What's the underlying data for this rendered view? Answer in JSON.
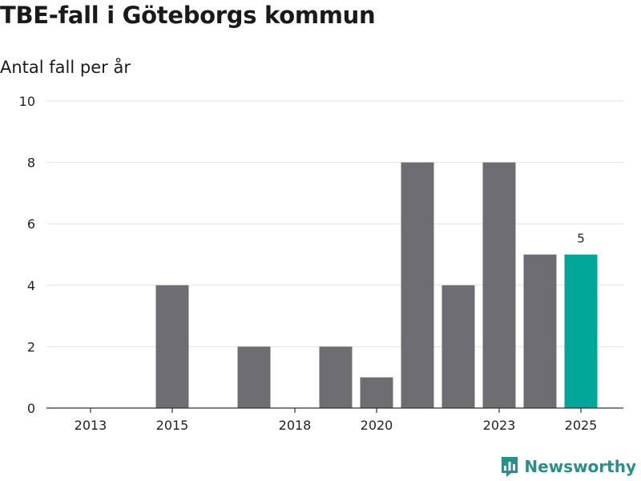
{
  "header": {
    "title": "TBE-fall i Göteborgs kommun",
    "subtitle": "Antal fall per år"
  },
  "brand": {
    "name": "Newsworthy"
  },
  "colors": {
    "bar": "#6e6d72",
    "highlight": "#00a698",
    "grid": "#e2e2e2",
    "axis": "#333333"
  },
  "chart_data": {
    "type": "bar",
    "title": "TBE-fall i Göteborgs kommun",
    "subtitle": "Antal fall per år",
    "xlabel": "",
    "ylabel": "Antal fall per år",
    "categories": [
      2013,
      2014,
      2015,
      2016,
      2017,
      2018,
      2019,
      2020,
      2021,
      2022,
      2023,
      2024,
      2025
    ],
    "values": [
      0,
      0,
      4,
      0,
      2,
      0,
      2,
      1,
      8,
      4,
      8,
      5,
      5
    ],
    "highlight_index": 12,
    "highlight_label": "5",
    "ylim": [
      0,
      10
    ],
    "yticks": [
      0,
      2,
      4,
      6,
      8,
      10
    ],
    "xticks": [
      2013,
      2015,
      2018,
      2020,
      2023,
      2025
    ],
    "grid": true
  }
}
